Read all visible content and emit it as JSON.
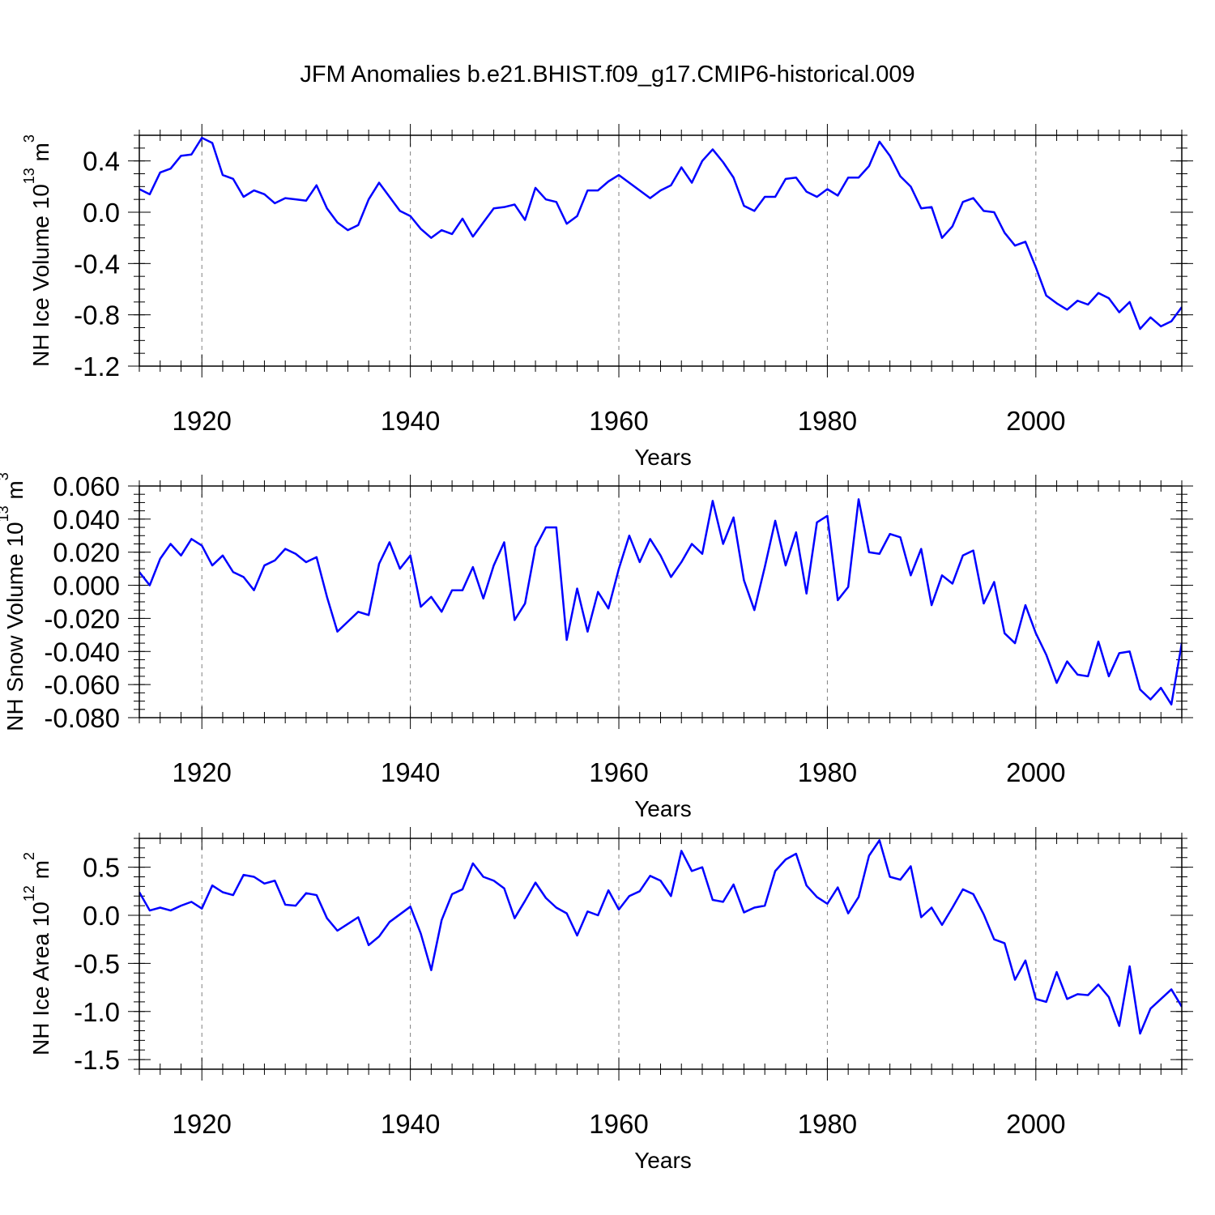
{
  "page_title": "JFM Anomalies b.e21.BHIST.f09_g17.CMIP6-historical.009",
  "line_color": "#0000ff",
  "chart_data": [
    {
      "type": "line",
      "name": "NH Ice Volume",
      "ylabel": "NH Ice Volume 10",
      "ylabel_exp": "13",
      "ylabel_unit": " m",
      "ylabel_unit_exp": "3",
      "xlabel": "Years",
      "xlim": [
        1914,
        2014
      ],
      "ylim": [
        -1.2,
        0.6
      ],
      "x_ticks": [
        1920,
        1940,
        1960,
        1980,
        2000
      ],
      "x_tick_labels": [
        "1920",
        "1940",
        "1960",
        "1980",
        "2000"
      ],
      "y_ticks": [
        -1.2,
        -0.8,
        -0.4,
        0.0,
        0.4
      ],
      "y_tick_labels": [
        "-1.2",
        "-0.8",
        "-0.4",
        "0.0",
        "0.4"
      ],
      "y_minor_step": 0.1,
      "x_start": 1914,
      "values": [
        0.18,
        0.14,
        0.31,
        0.34,
        0.44,
        0.45,
        0.58,
        0.54,
        0.29,
        0.26,
        0.12,
        0.17,
        0.14,
        0.07,
        0.11,
        0.1,
        0.09,
        0.21,
        0.03,
        -0.08,
        -0.14,
        -0.1,
        0.1,
        0.23,
        0.12,
        0.01,
        -0.03,
        -0.13,
        -0.2,
        -0.14,
        -0.17,
        -0.05,
        -0.19,
        -0.08,
        0.03,
        0.04,
        0.06,
        -0.06,
        0.19,
        0.1,
        0.08,
        -0.09,
        -0.03,
        0.17,
        0.17,
        0.24,
        0.29,
        0.23,
        0.17,
        0.11,
        0.17,
        0.21,
        0.35,
        0.23,
        0.4,
        0.49,
        0.39,
        0.27,
        0.05,
        0.01,
        0.12,
        0.12,
        0.26,
        0.27,
        0.16,
        0.12,
        0.18,
        0.13,
        0.27,
        0.27,
        0.36,
        0.55,
        0.44,
        0.28,
        0.2,
        0.03,
        0.04,
        -0.2,
        -0.11,
        0.08,
        0.11,
        0.01,
        0.0,
        -0.16,
        -0.26,
        -0.23,
        -0.43,
        -0.65,
        -0.71,
        -0.76,
        -0.69,
        -0.72,
        -0.63,
        -0.67,
        -0.78,
        -0.7,
        -0.91,
        -0.82,
        -0.89,
        -0.85,
        -0.74
      ]
    },
    {
      "type": "line",
      "name": "NH Snow Volume",
      "ylabel": "NH Snow Volume 10",
      "ylabel_exp": "13",
      "ylabel_unit": " m",
      "ylabel_unit_exp": "3",
      "xlabel": "Years",
      "xlim": [
        1914,
        2014
      ],
      "ylim": [
        -0.08,
        0.06
      ],
      "x_ticks": [
        1920,
        1940,
        1960,
        1980,
        2000
      ],
      "x_tick_labels": [
        "1920",
        "1940",
        "1960",
        "1980",
        "2000"
      ],
      "y_ticks": [
        -0.08,
        -0.06,
        -0.04,
        -0.02,
        0.0,
        0.02,
        0.04,
        0.06
      ],
      "y_tick_labels": [
        "-0.080",
        "-0.060",
        "-0.040",
        "-0.020",
        "0.000",
        "0.020",
        "0.040",
        "0.060"
      ],
      "y_minor_step": 0.005,
      "x_start": 1914,
      "values": [
        0.008,
        0.0,
        0.016,
        0.025,
        0.018,
        0.028,
        0.024,
        0.012,
        0.018,
        0.008,
        0.005,
        -0.003,
        0.012,
        0.015,
        0.022,
        0.019,
        0.014,
        0.017,
        -0.007,
        -0.028,
        -0.022,
        -0.016,
        -0.018,
        0.013,
        0.026,
        0.01,
        0.018,
        -0.013,
        -0.007,
        -0.016,
        -0.003,
        -0.003,
        0.011,
        -0.008,
        0.012,
        0.026,
        -0.021,
        -0.011,
        0.023,
        0.035,
        0.035,
        -0.033,
        -0.002,
        -0.028,
        -0.004,
        -0.014,
        0.01,
        0.03,
        0.014,
        0.028,
        0.018,
        0.005,
        0.014,
        0.025,
        0.019,
        0.051,
        0.025,
        0.041,
        0.003,
        -0.015,
        0.011,
        0.039,
        0.012,
        0.032,
        -0.005,
        0.038,
        0.042,
        -0.009,
        -0.001,
        0.052,
        0.02,
        0.019,
        0.031,
        0.029,
        0.006,
        0.022,
        -0.012,
        0.006,
        0.001,
        0.018,
        0.021,
        -0.011,
        0.002,
        -0.029,
        -0.035,
        -0.012,
        -0.029,
        -0.042,
        -0.059,
        -0.046,
        -0.054,
        -0.055,
        -0.034,
        -0.055,
        -0.041,
        -0.04,
        -0.063,
        -0.069,
        -0.062,
        -0.072,
        -0.035
      ]
    },
    {
      "type": "line",
      "name": "NH Ice Area",
      "ylabel": "NH Ice Area 10",
      "ylabel_exp": "12",
      "ylabel_unit": " m",
      "ylabel_unit_exp": "2",
      "xlabel": "Years",
      "xlim": [
        1914,
        2014
      ],
      "ylim": [
        -1.6,
        0.8
      ],
      "x_ticks": [
        1920,
        1940,
        1960,
        1980,
        2000
      ],
      "x_tick_labels": [
        "1920",
        "1940",
        "1960",
        "1980",
        "2000"
      ],
      "y_ticks": [
        -1.5,
        -1.0,
        -0.5,
        0.0,
        0.5
      ],
      "y_tick_labels": [
        "-1.5",
        "-1.0",
        "-0.5",
        "0.0",
        "0.5"
      ],
      "y_minor_step": 0.1,
      "x_start": 1914,
      "values": [
        0.24,
        0.05,
        0.08,
        0.05,
        0.1,
        0.14,
        0.07,
        0.31,
        0.24,
        0.21,
        0.42,
        0.4,
        0.33,
        0.36,
        0.11,
        0.1,
        0.23,
        0.21,
        -0.03,
        -0.16,
        -0.09,
        -0.02,
        -0.31,
        -0.22,
        -0.07,
        0.01,
        0.09,
        -0.19,
        -0.57,
        -0.05,
        0.22,
        0.27,
        0.54,
        0.4,
        0.36,
        0.28,
        -0.03,
        0.15,
        0.34,
        0.18,
        0.08,
        0.02,
        -0.21,
        0.04,
        0.0,
        0.26,
        0.06,
        0.2,
        0.25,
        0.41,
        0.36,
        0.2,
        0.67,
        0.46,
        0.5,
        0.16,
        0.14,
        0.32,
        0.03,
        0.08,
        0.1,
        0.46,
        0.58,
        0.64,
        0.31,
        0.19,
        0.12,
        0.29,
        0.02,
        0.19,
        0.62,
        0.78,
        0.4,
        0.37,
        0.51,
        -0.02,
        0.08,
        -0.1,
        0.08,
        0.27,
        0.22,
        0.01,
        -0.25,
        -0.29,
        -0.67,
        -0.47,
        -0.87,
        -0.9,
        -0.59,
        -0.87,
        -0.82,
        -0.83,
        -0.72,
        -0.85,
        -1.15,
        -0.53,
        -1.23,
        -0.97,
        -0.87,
        -0.77,
        -0.95
      ]
    }
  ]
}
